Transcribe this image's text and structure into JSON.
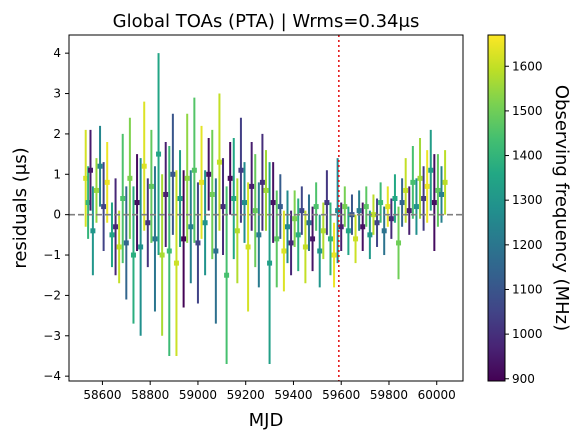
{
  "chart_data": {
    "type": "scatter",
    "title": "Global TOAs (PTA) | Wrms=0.34μs",
    "xlabel": "MJD",
    "ylabel": "residuals (μs)",
    "xlim": [
      58460,
      60110
    ],
    "ylim": [
      -4.12,
      4.45
    ],
    "xticks": [
      58600,
      58800,
      59000,
      59200,
      59400,
      59600,
      59800,
      60000
    ],
    "yticks": [
      -4,
      -3,
      -2,
      -1,
      0,
      1,
      2,
      3,
      4
    ],
    "xticklabels": [
      "58600",
      "58800",
      "59000",
      "59200",
      "59400",
      "59600",
      "59800",
      "60000"
    ],
    "yticklabels": [
      "−4",
      "−3",
      "−2",
      "−1",
      "0",
      "1",
      "2",
      "3",
      "4"
    ],
    "reference_line": {
      "y": 0,
      "style": "dashed",
      "color": "#808080"
    },
    "vertical_marker": {
      "x": 59590,
      "style": "dotted",
      "color": "#e41a1c"
    },
    "colorbar": {
      "label": "Observing frequency (MHz)",
      "range": [
        895,
        1670
      ],
      "ticks": [
        900,
        1000,
        1100,
        1200,
        1300,
        1400,
        1500,
        1600
      ],
      "ticklabels": [
        "900",
        "1000",
        "1100",
        "1200",
        "1300",
        "1400",
        "1500",
        "1600"
      ],
      "colormap": "viridis"
    },
    "grid": false,
    "legend": "none",
    "series": [
      {
        "points": [
          {
            "x": 58530,
            "y": 0.9,
            "err": 1.2,
            "freq": 1620
          },
          {
            "x": 58540,
            "y": 0.3,
            "err": 0.9,
            "freq": 1400
          },
          {
            "x": 58550,
            "y": 1.1,
            "err": 1.0,
            "freq": 950
          },
          {
            "x": 58560,
            "y": -0.4,
            "err": 1.1,
            "freq": 1300
          },
          {
            "x": 58575,
            "y": 0.6,
            "err": 0.8,
            "freq": 1550
          },
          {
            "x": 58590,
            "y": 1.2,
            "err": 1.0,
            "freq": 1250
          },
          {
            "x": 58605,
            "y": 0.2,
            "err": 1.1,
            "freq": 1050
          },
          {
            "x": 58620,
            "y": 0.8,
            "err": 1.0,
            "freq": 1650
          },
          {
            "x": 58640,
            "y": -0.5,
            "err": 0.8,
            "freq": 1350
          },
          {
            "x": 58655,
            "y": -0.3,
            "err": 1.2,
            "freq": 980
          },
          {
            "x": 58670,
            "y": -0.8,
            "err": 0.9,
            "freq": 1600
          },
          {
            "x": 58685,
            "y": 0.4,
            "err": 1.6,
            "freq": 1450
          },
          {
            "x": 58700,
            "y": -0.7,
            "err": 1.4,
            "freq": 1150
          },
          {
            "x": 58715,
            "y": 0.9,
            "err": 1.5,
            "freq": 1520
          },
          {
            "x": 58730,
            "y": -1.0,
            "err": 1.7,
            "freq": 1380
          },
          {
            "x": 58745,
            "y": 0.3,
            "err": 1.2,
            "freq": 920
          },
          {
            "x": 58760,
            "y": -0.8,
            "err": 2.2,
            "freq": 1280
          },
          {
            "x": 58775,
            "y": 1.2,
            "err": 1.6,
            "freq": 1630
          },
          {
            "x": 58790,
            "y": -0.2,
            "err": 1.1,
            "freq": 1010
          },
          {
            "x": 58805,
            "y": 0.7,
            "err": 1.4,
            "freq": 1480
          },
          {
            "x": 58820,
            "y": -0.6,
            "err": 1.8,
            "freq": 1200
          },
          {
            "x": 58835,
            "y": 1.5,
            "err": 2.5,
            "freq": 1350
          },
          {
            "x": 58850,
            "y": -1.0,
            "err": 2.0,
            "freq": 1570
          },
          {
            "x": 58865,
            "y": 0.5,
            "err": 1.3,
            "freq": 960
          },
          {
            "x": 58880,
            "y": -0.9,
            "err": 2.6,
            "freq": 1420
          },
          {
            "x": 58895,
            "y": 1.0,
            "err": 1.5,
            "freq": 1100
          },
          {
            "x": 58910,
            "y": -1.2,
            "err": 2.3,
            "freq": 1610
          },
          {
            "x": 58925,
            "y": 0.4,
            "err": 1.2,
            "freq": 1320
          },
          {
            "x": 58940,
            "y": -0.6,
            "err": 1.7,
            "freq": 900
          },
          {
            "x": 58955,
            "y": 0.9,
            "err": 1.6,
            "freq": 1540
          },
          {
            "x": 58970,
            "y": -0.3,
            "err": 1.4,
            "freq": 1230
          },
          {
            "x": 58985,
            "y": 1.1,
            "err": 1.8,
            "freq": 1460
          },
          {
            "x": 59000,
            "y": -0.7,
            "err": 1.5,
            "freq": 1050
          },
          {
            "x": 59015,
            "y": 0.8,
            "err": 1.4,
            "freq": 1640
          },
          {
            "x": 59030,
            "y": -0.2,
            "err": 1.3,
            "freq": 1290
          },
          {
            "x": 59045,
            "y": 1.0,
            "err": 0.9,
            "freq": 930
          },
          {
            "x": 59060,
            "y": 0.5,
            "err": 1.6,
            "freq": 1500
          },
          {
            "x": 59075,
            "y": -0.9,
            "err": 1.8,
            "freq": 1180
          },
          {
            "x": 59090,
            "y": 1.3,
            "err": 1.7,
            "freq": 1600
          },
          {
            "x": 59105,
            "y": 0.2,
            "err": 1.2,
            "freq": 990
          },
          {
            "x": 59120,
            "y": -1.5,
            "err": 2.2,
            "freq": 1440
          },
          {
            "x": 59135,
            "y": 0.9,
            "err": 0.9,
            "freq": 910
          },
          {
            "x": 59150,
            "y": 0.4,
            "err": 1.5,
            "freq": 1360
          },
          {
            "x": 59165,
            "y": -0.4,
            "err": 1.3,
            "freq": 1580
          },
          {
            "x": 59180,
            "y": 1.1,
            "err": 1.3,
            "freq": 1040
          },
          {
            "x": 59195,
            "y": 0.3,
            "err": 1.0,
            "freq": 1270
          },
          {
            "x": 59210,
            "y": -0.8,
            "err": 1.6,
            "freq": 1620
          },
          {
            "x": 59225,
            "y": 0.7,
            "err": 1.1,
            "freq": 960
          },
          {
            "x": 59240,
            "y": 0.1,
            "err": 1.4,
            "freq": 1490
          },
          {
            "x": 59255,
            "y": -0.5,
            "err": 1.3,
            "freq": 1210
          },
          {
            "x": 59270,
            "y": 0.8,
            "err": 1.2,
            "freq": 1000
          },
          {
            "x": 59285,
            "y": 0.6,
            "err": 1.0,
            "freq": 1560
          },
          {
            "x": 59300,
            "y": -1.2,
            "err": 2.5,
            "freq": 1330
          },
          {
            "x": 59315,
            "y": 0.3,
            "err": 1.0,
            "freq": 930
          },
          {
            "x": 59330,
            "y": -0.6,
            "err": 1.2,
            "freq": 1470
          },
          {
            "x": 59345,
            "y": 0.2,
            "err": 0.8,
            "freq": 1120
          },
          {
            "x": 59360,
            "y": -0.9,
            "err": 1.0,
            "freq": 1630
          },
          {
            "x": 59375,
            "y": -0.3,
            "err": 0.9,
            "freq": 1260
          },
          {
            "x": 59390,
            "y": -0.7,
            "err": 0.8,
            "freq": 980
          },
          {
            "x": 59405,
            "y": -0.1,
            "err": 0.7,
            "freq": 1520
          },
          {
            "x": 59420,
            "y": -0.5,
            "err": 0.9,
            "freq": 1380
          },
          {
            "x": 59435,
            "y": 0.1,
            "err": 0.6,
            "freq": 1060
          },
          {
            "x": 59450,
            "y": -0.8,
            "err": 0.9,
            "freq": 1600
          },
          {
            "x": 59465,
            "y": -0.2,
            "err": 0.7,
            "freq": 1180
          },
          {
            "x": 59480,
            "y": -0.6,
            "err": 0.8,
            "freq": 940
          },
          {
            "x": 59495,
            "y": 0.2,
            "err": 0.6,
            "freq": 1450
          },
          {
            "x": 59510,
            "y": -0.9,
            "err": 0.9,
            "freq": 1300
          },
          {
            "x": 59525,
            "y": -0.4,
            "err": 0.7,
            "freq": 1580
          },
          {
            "x": 59540,
            "y": 0.3,
            "err": 0.8,
            "freq": 1020
          },
          {
            "x": 59555,
            "y": -0.6,
            "err": 0.9,
            "freq": 1400
          },
          {
            "x": 59570,
            "y": -1.0,
            "err": 0.8,
            "freq": 1650
          },
          {
            "x": 59585,
            "y": 0.1,
            "err": 1.3,
            "freq": 1240
          },
          {
            "x": 59600,
            "y": -0.3,
            "err": 0.6,
            "freq": 960
          },
          {
            "x": 59615,
            "y": 0.2,
            "err": 0.5,
            "freq": 1510
          },
          {
            "x": 59630,
            "y": -0.4,
            "err": 0.6,
            "freq": 1350
          },
          {
            "x": 59645,
            "y": 0.0,
            "err": 0.5,
            "freq": 1100
          },
          {
            "x": 59660,
            "y": -0.6,
            "err": 0.6,
            "freq": 1610
          },
          {
            "x": 59675,
            "y": 0.1,
            "err": 0.5,
            "freq": 1220
          },
          {
            "x": 59690,
            "y": -0.3,
            "err": 0.6,
            "freq": 930
          },
          {
            "x": 59705,
            "y": 0.2,
            "err": 0.5,
            "freq": 1470
          },
          {
            "x": 59720,
            "y": -0.5,
            "err": 0.6,
            "freq": 1310
          },
          {
            "x": 59735,
            "y": 0.0,
            "err": 0.5,
            "freq": 1590
          },
          {
            "x": 59750,
            "y": -0.2,
            "err": 0.6,
            "freq": 1050
          },
          {
            "x": 59765,
            "y": 0.3,
            "err": 0.5,
            "freq": 1420
          },
          {
            "x": 59780,
            "y": -0.4,
            "err": 0.6,
            "freq": 1190
          },
          {
            "x": 59795,
            "y": 0.2,
            "err": 0.5,
            "freq": 1640
          },
          {
            "x": 59810,
            "y": -0.1,
            "err": 0.5,
            "freq": 990
          },
          {
            "x": 59825,
            "y": 0.4,
            "err": 0.6,
            "freq": 1360
          },
          {
            "x": 59840,
            "y": -0.7,
            "err": 0.9,
            "freq": 1500
          },
          {
            "x": 59855,
            "y": 0.3,
            "err": 0.6,
            "freq": 1150
          },
          {
            "x": 59870,
            "y": 0.6,
            "err": 0.8,
            "freq": 1600
          },
          {
            "x": 59885,
            "y": 0.1,
            "err": 0.6,
            "freq": 960
          },
          {
            "x": 59900,
            "y": 0.8,
            "err": 0.9,
            "freq": 1440
          },
          {
            "x": 59915,
            "y": 0.2,
            "err": 0.7,
            "freq": 1280
          },
          {
            "x": 59930,
            "y": 0.9,
            "err": 1.0,
            "freq": 1560
          },
          {
            "x": 59945,
            "y": 0.4,
            "err": 0.8,
            "freq": 1030
          },
          {
            "x": 59960,
            "y": 0.7,
            "err": 0.9,
            "freq": 1650
          },
          {
            "x": 59975,
            "y": 1.1,
            "err": 1.0,
            "freq": 1320
          },
          {
            "x": 59990,
            "y": 0.3,
            "err": 1.2,
            "freq": 920
          },
          {
            "x": 60005,
            "y": 0.6,
            "err": 0.9,
            "freq": 1480
          },
          {
            "x": 60020,
            "y": 0.5,
            "err": 0.7,
            "freq": 1230
          },
          {
            "x": 60035,
            "y": 0.8,
            "err": 0.8,
            "freq": 1590
          }
        ]
      }
    ]
  }
}
